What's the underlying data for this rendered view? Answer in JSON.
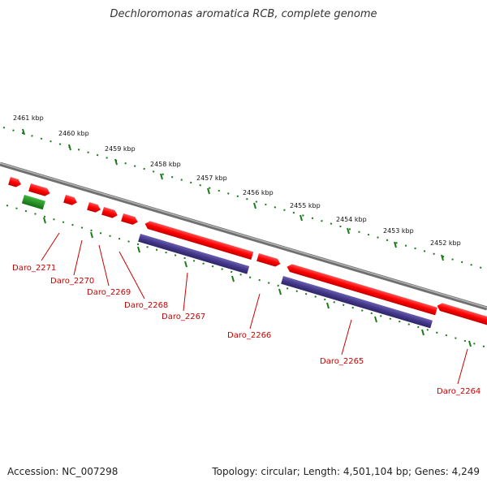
{
  "title": "Dechloromonas aromatica RCB, complete genome",
  "footer": {
    "accession": "Accession: NC_007298",
    "summary": "Topology: circular; Length: 4,501,104 bp; Genes: 4,249"
  },
  "colors": {
    "forward_gene": "#ff0000",
    "reverse_gene_red": "#ff0000",
    "cds_blue": "#4a3c8f",
    "rna_green": "#1f8a1f",
    "backbone": "#8a8a8a",
    "ticks": "#1a7a1a",
    "label": "#cc0000"
  },
  "kbp_markers": [
    "2461 kbp",
    "2460 kbp",
    "2459 kbp",
    "2458 kbp",
    "2457 kbp",
    "2456 kbp",
    "2455 kbp",
    "2454 kbp",
    "2453 kbp",
    "2452 kbp"
  ],
  "genes": [
    "Daro_2271",
    "Daro_2270",
    "Daro_2269",
    "Daro_2268",
    "Daro_2267",
    "Daro_2266",
    "Daro_2265",
    "Daro_2264"
  ]
}
